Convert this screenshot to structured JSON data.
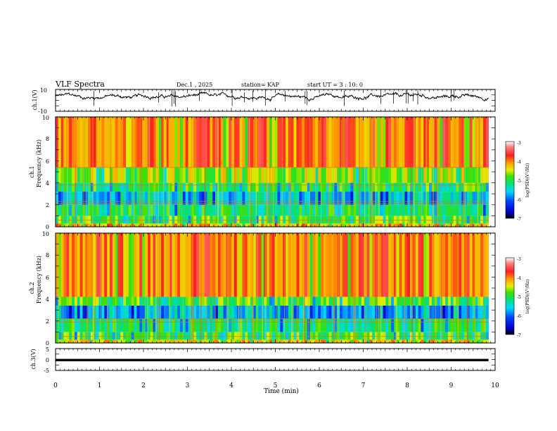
{
  "header": {
    "title": "VLF Spectra",
    "date": "Dec.1 , 2025",
    "station": "station= KAP",
    "start": "start UT =  3 : 10: 0"
  },
  "chart_data": [
    {
      "type": "line",
      "panel": "ch1-waveform",
      "ylabel": "ch.1(V)",
      "ylim": [
        -10,
        10
      ],
      "yticks": [
        "10",
        "-10"
      ],
      "xlim": [
        0,
        10
      ],
      "data_end_min": 9.85,
      "trace_center_v": 3.5,
      "trace_amplitude_v": 3.5,
      "envelope_min": 9.85
    },
    {
      "type": "heatmap",
      "panel": "ch1-spectrogram",
      "ylabel_line1": "ch.1",
      "ylabel_line2": "Frequency (kHz)",
      "ylim": [
        0,
        10
      ],
      "yticks": [
        "0",
        "2",
        "4",
        "6",
        "8",
        "10"
      ],
      "xlim": [
        0,
        10
      ],
      "data_end_min": 9.85,
      "bands": [
        {
          "from_khz": 0.0,
          "to_khz": 0.3,
          "level": -4.2
        },
        {
          "from_khz": 0.3,
          "to_khz": 1.0,
          "level": -4.9
        },
        {
          "from_khz": 1.0,
          "to_khz": 2.0,
          "level": -5.1
        },
        {
          "from_khz": 2.0,
          "to_khz": 3.2,
          "level": -5.5
        },
        {
          "from_khz": 3.2,
          "to_khz": 4.0,
          "level": -5.0
        },
        {
          "from_khz": 4.0,
          "to_khz": 5.4,
          "level": -4.6
        },
        {
          "from_khz": 5.4,
          "to_khz": 10.0,
          "level": -3.9
        }
      ],
      "lines_khz": [
        0.6,
        2.1,
        2.3,
        3.8,
        5.4
      ]
    },
    {
      "type": "heatmap",
      "panel": "ch2-spectrogram",
      "ylabel_line1": "ch.2",
      "ylabel_line2": "Frequency (kHz)",
      "ylim": [
        0,
        10
      ],
      "yticks": [
        "0",
        "2",
        "4",
        "6",
        "8",
        "10"
      ],
      "xlim": [
        0,
        10
      ],
      "data_end_min": 9.85,
      "bands": [
        {
          "from_khz": 0.0,
          "to_khz": 0.3,
          "level": -4.3
        },
        {
          "from_khz": 0.3,
          "to_khz": 1.0,
          "level": -4.9
        },
        {
          "from_khz": 1.0,
          "to_khz": 2.2,
          "level": -5.1
        },
        {
          "from_khz": 2.2,
          "to_khz": 3.4,
          "level": -5.6
        },
        {
          "from_khz": 3.4,
          "to_khz": 4.2,
          "level": -4.9
        },
        {
          "from_khz": 4.2,
          "to_khz": 10.0,
          "level": -3.9
        }
      ],
      "lines_khz": [
        0.6,
        1.9,
        2.2
      ]
    },
    {
      "type": "line",
      "panel": "ch3-waveform",
      "ylabel": "ch.3(V)",
      "ylim": [
        -5,
        5
      ],
      "yticks": [
        "5",
        "0",
        "-5"
      ],
      "xlim": [
        0,
        10
      ],
      "data_end_min": 9.85,
      "band_low_v": -0.8,
      "band_high_v": 0.3
    }
  ],
  "xaxis": {
    "label": "Time (min)",
    "ticks": [
      "0",
      "1",
      "2",
      "3",
      "4",
      "5",
      "6",
      "7",
      "8",
      "9",
      "10"
    ]
  },
  "colorbars": [
    {
      "label": "log(PSD)(V²/Hz)",
      "ticks": [
        "-3",
        "-4",
        "-5",
        "-6",
        "-7"
      ],
      "range": [
        -7,
        -3
      ]
    },
    {
      "label": "log(PSD)(V²/Hz)",
      "ticks": [
        "-3",
        "-4",
        "-5",
        "-6",
        "-7"
      ],
      "range": [
        -7,
        -3
      ]
    }
  ],
  "colors": {
    "axis": "#000000",
    "trace": "#000000",
    "background": "#ffffff"
  }
}
